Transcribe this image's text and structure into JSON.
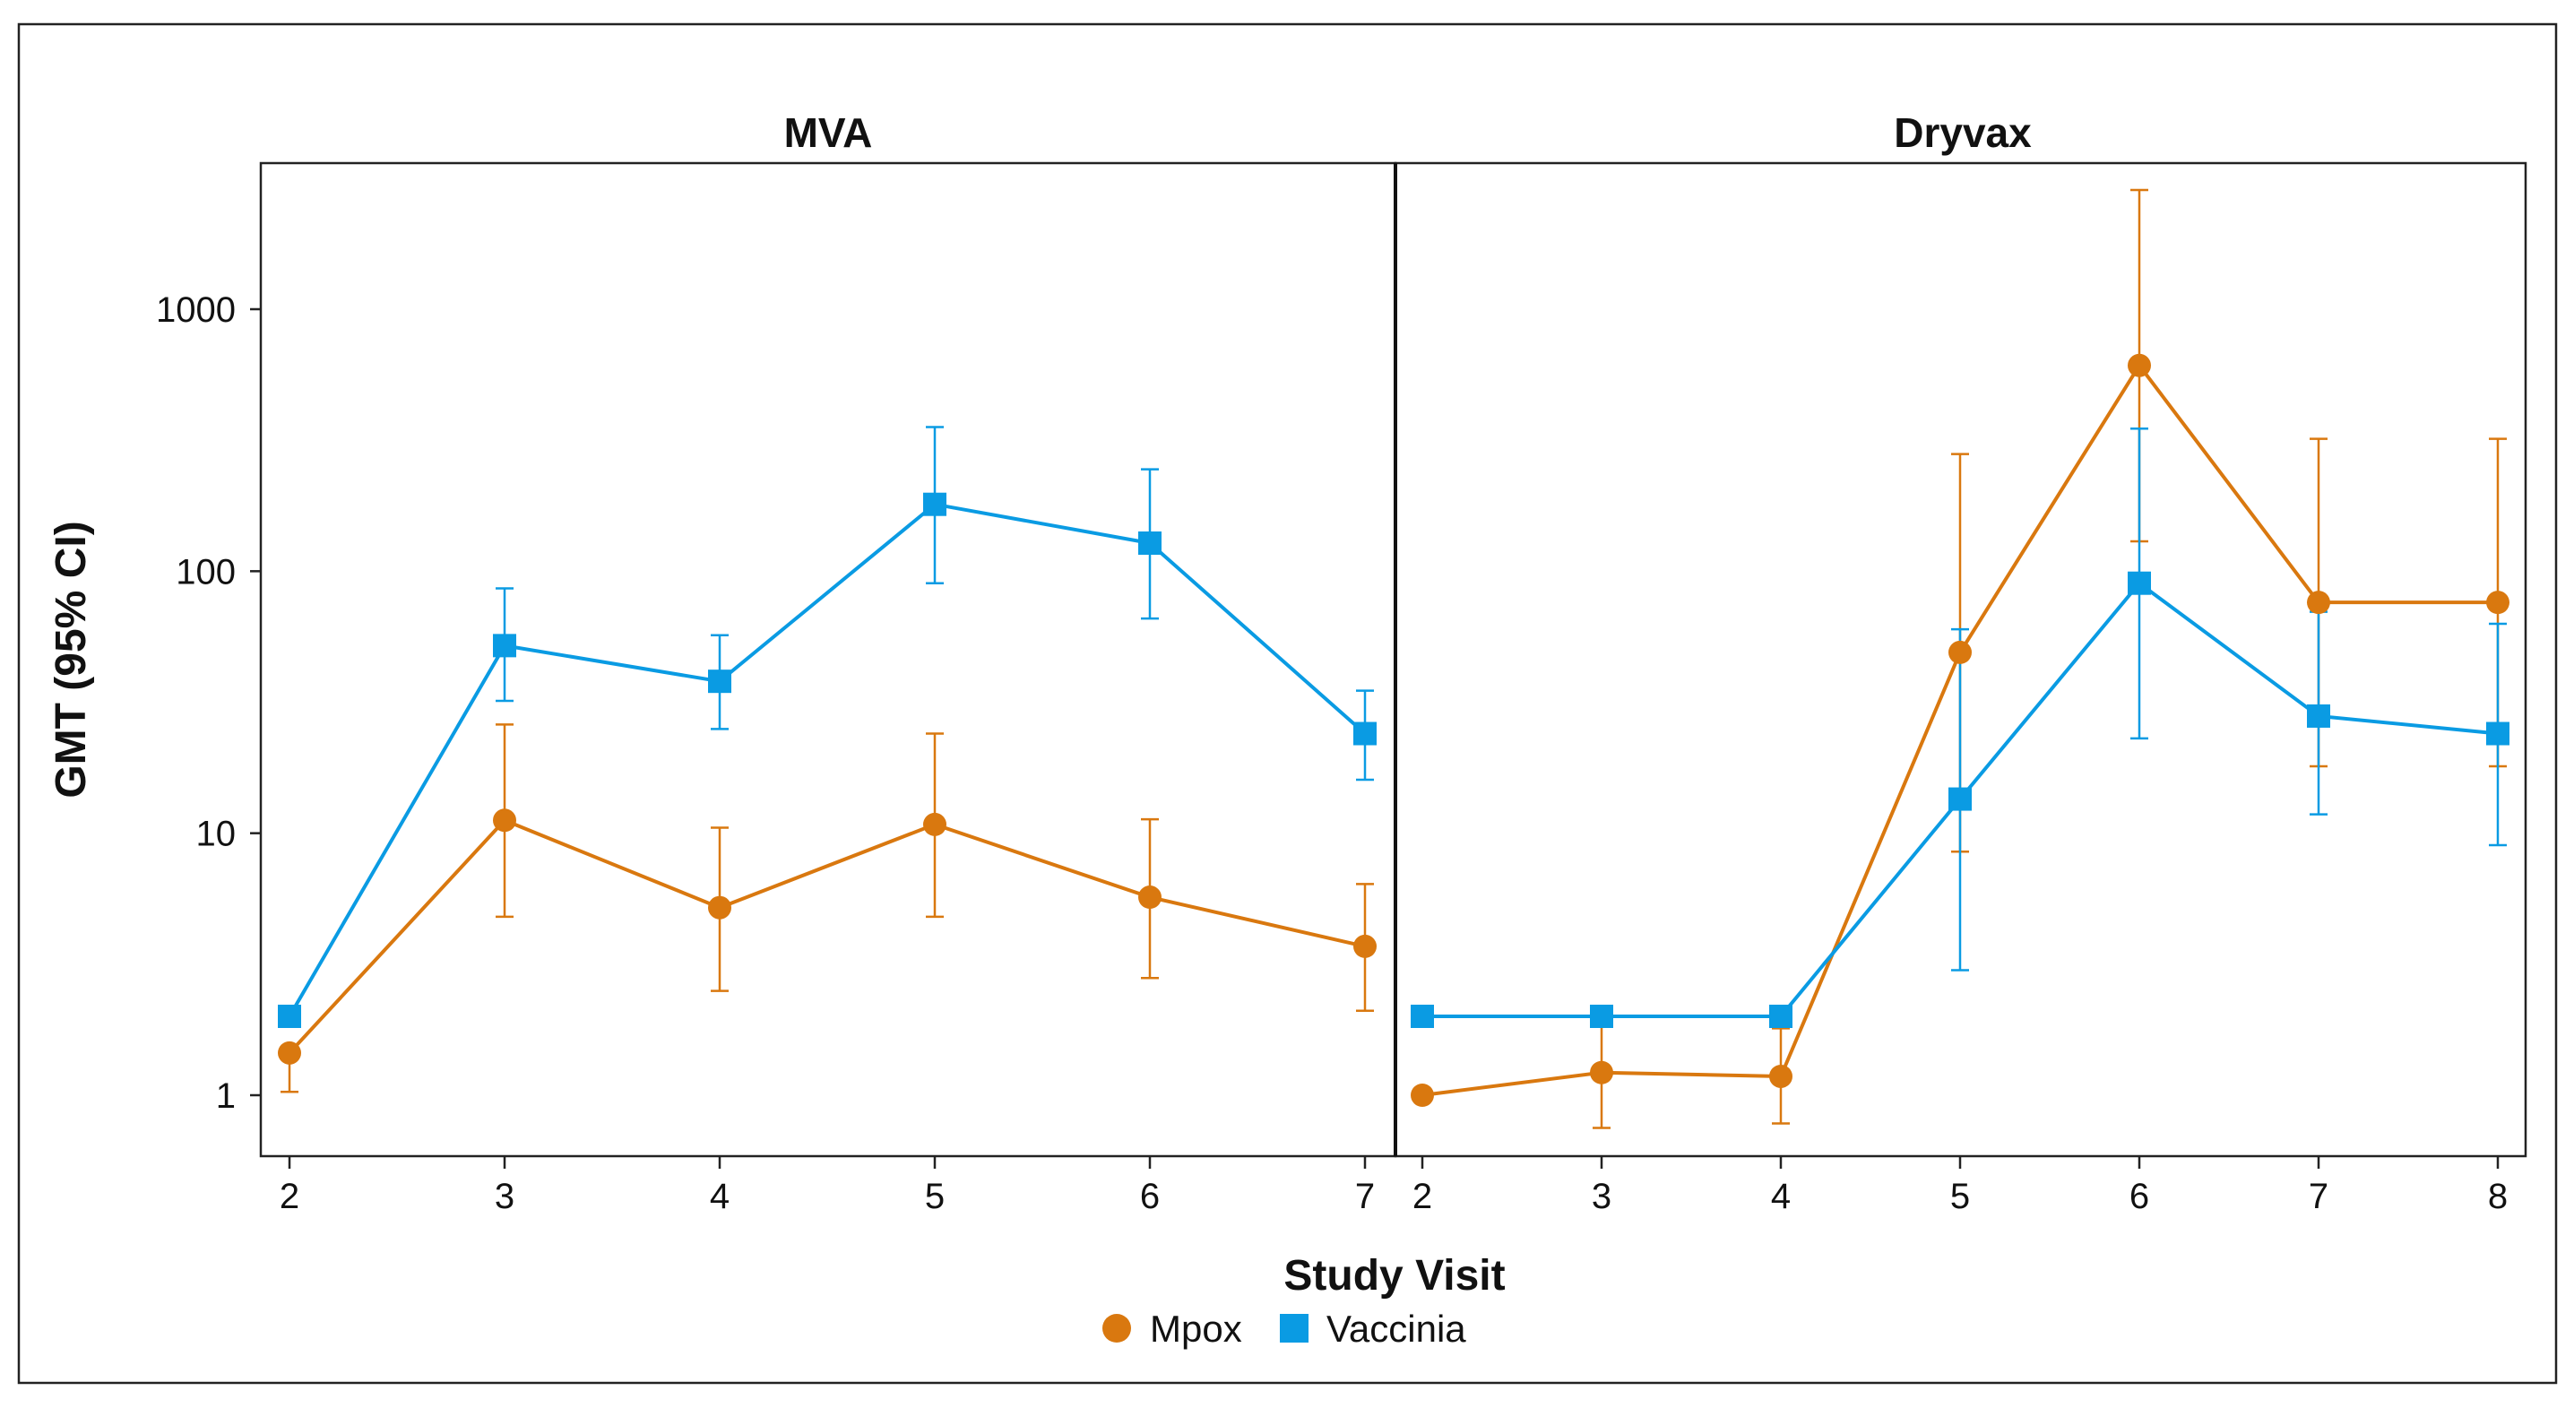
{
  "chart_data": {
    "type": "line",
    "yscale": "log",
    "ylabel": "GMT (95% CI)",
    "xlabel": "Study Visit",
    "ylim": [
      0.58,
      3300
    ],
    "yticks": [
      1,
      10,
      100,
      1000
    ],
    "ytick_labels": [
      "1",
      "10",
      "100",
      "1000"
    ],
    "legend": {
      "position": "bottom-center",
      "entries": [
        {
          "name": "Mpox",
          "marker": "circle",
          "color": "#D9780F"
        },
        {
          "name": "Vaccinia",
          "marker": "square",
          "color": "#0A9BE3"
        }
      ]
    },
    "panels": [
      {
        "title": "MVA",
        "x": [
          2,
          3,
          4,
          5,
          6,
          7
        ],
        "series": [
          {
            "name": "Mpox",
            "values": [
              1.45,
              11.2,
              5.2,
              10.8,
              5.7,
              3.7
            ],
            "lower": [
              1.03,
              4.8,
              2.5,
              4.8,
              2.8,
              2.1
            ],
            "upper": [
              1.45,
              26,
              10.5,
              24,
              11.3,
              6.4
            ]
          },
          {
            "name": "Vaccinia",
            "values": [
              2.0,
              52,
              38,
              180,
              128,
              24
            ],
            "lower": [
              2.0,
              32,
              25,
              90,
              66,
              16
            ],
            "upper": [
              2.0,
              86,
              57,
              355,
              245,
              35
            ]
          }
        ]
      },
      {
        "title": "Dryvax",
        "x": [
          2,
          3,
          4,
          5,
          6,
          7,
          8
        ],
        "series": [
          {
            "name": "Mpox",
            "values": [
              1.0,
              1.22,
              1.18,
              49,
              610,
              76,
              76
            ],
            "lower": [
              1.0,
              0.75,
              0.78,
              8.5,
              130,
              18,
              18
            ],
            "upper": [
              1.0,
              2.0,
              1.8,
              280,
              2850,
              320,
              320
            ]
          },
          {
            "name": "Vaccinia",
            "values": [
              2.0,
              2.0,
              2.0,
              13.5,
              90,
              28,
              24
            ],
            "lower": [
              2.0,
              2.0,
              2.0,
              3.0,
              23,
              11.8,
              9.0
            ],
            "upper": [
              2.0,
              2.0,
              2.0,
              60,
              350,
              70,
              63
            ]
          }
        ]
      }
    ]
  }
}
